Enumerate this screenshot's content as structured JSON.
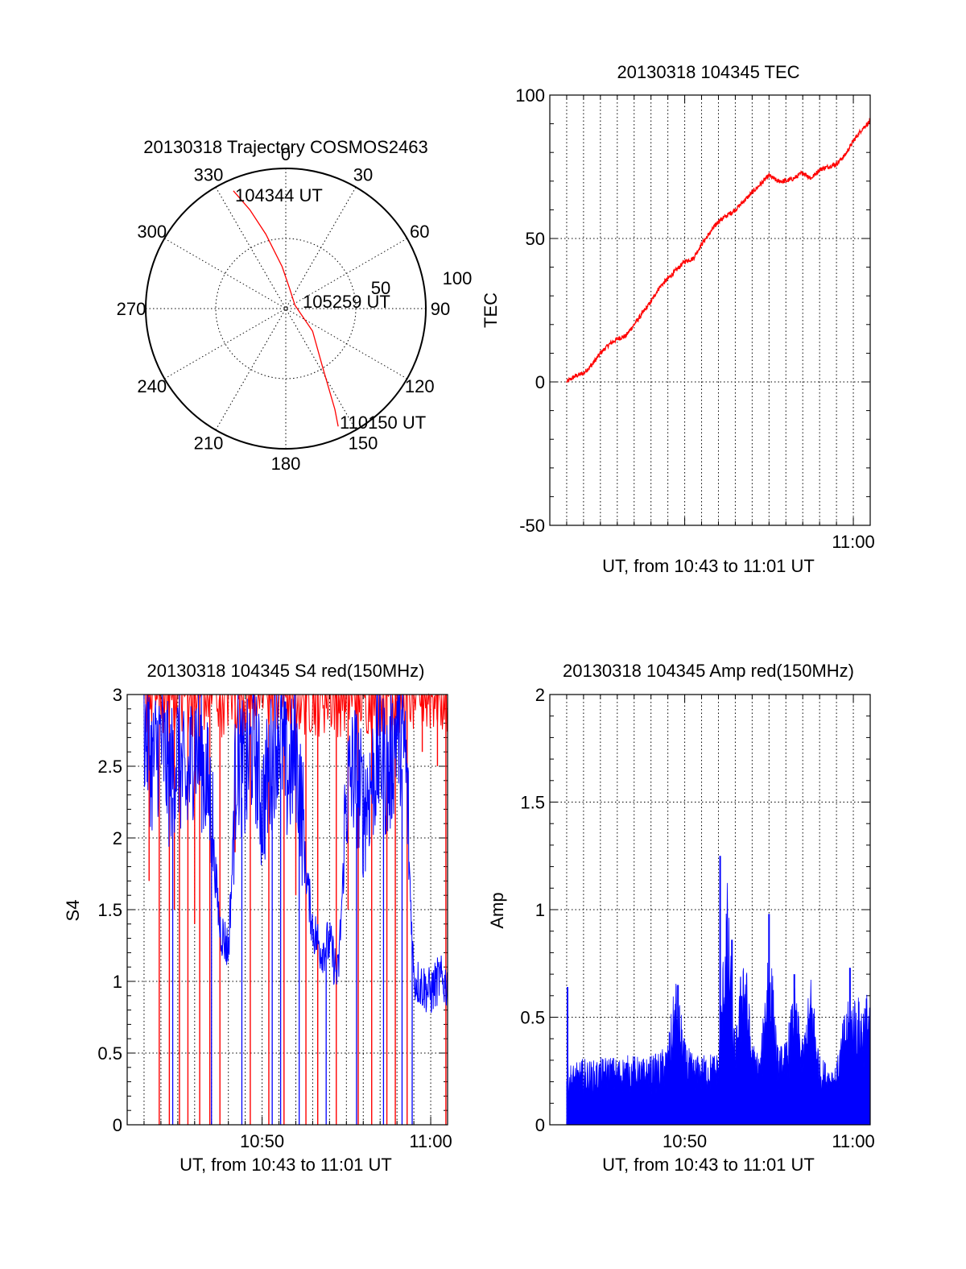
{
  "colors": {
    "red": "#ff0000",
    "blue": "#0000ff",
    "black": "#000000"
  },
  "chart_data": [
    {
      "id": "trajectory",
      "type": "polar",
      "title": "20130318 Trajectory COSMOS2463",
      "angle_labels": [
        "0",
        "30",
        "60",
        "90",
        "120",
        "150",
        "180",
        "210",
        "240",
        "270",
        "300",
        "330"
      ],
      "radius_labels": [
        "50",
        "100"
      ],
      "radius_range": [
        0,
        100
      ],
      "track": [
        {
          "az": 336,
          "r": 92
        },
        {
          "az": 340,
          "r": 75
        },
        {
          "az": 345,
          "r": 55
        },
        {
          "az": 355,
          "r": 30
        },
        {
          "az": 10,
          "r": 15
        },
        {
          "az": 70,
          "r": 7
        },
        {
          "az": 130,
          "r": 25
        },
        {
          "az": 148,
          "r": 50
        },
        {
          "az": 154,
          "r": 80
        },
        {
          "az": 156,
          "r": 92
        }
      ],
      "annotations": [
        "104344 UT",
        "105259 UT",
        "110150 UT"
      ]
    },
    {
      "id": "tec",
      "type": "line",
      "title": "20130318 104345 TEC",
      "xlabel": "UT, from 10:43 to 11:01 UT",
      "ylabel": "TEC",
      "xlim": [
        42.0,
        61.0
      ],
      "ylim": [
        -50,
        100
      ],
      "yticks": [
        "-50",
        "0",
        "50",
        "100"
      ],
      "xtick_labels": [
        {
          "x": 60,
          "label": "11:00"
        }
      ],
      "series": [
        {
          "name": "TEC",
          "color": "#ff0000",
          "x": [
            43.0,
            43.5,
            44.0,
            44.5,
            45.0,
            45.5,
            46.0,
            46.5,
            47.0,
            47.5,
            48.0,
            48.5,
            49.0,
            49.5,
            50.0,
            50.5,
            51.0,
            51.5,
            52.0,
            52.5,
            53.0,
            53.5,
            54.0,
            54.5,
            55.0,
            55.5,
            56.0,
            56.5,
            57.0,
            57.5,
            58.0,
            58.5,
            59.0,
            59.5,
            60.0,
            60.5,
            61.0
          ],
          "y": [
            0,
            2,
            3,
            6,
            10,
            13,
            15,
            16,
            20,
            24,
            28,
            33,
            36,
            39,
            42,
            43,
            48,
            52,
            56,
            58,
            60,
            63,
            66,
            69,
            72,
            70,
            70,
            71,
            73,
            71,
            74,
            75,
            76,
            79,
            84,
            88,
            91
          ]
        }
      ]
    },
    {
      "id": "s4",
      "type": "line",
      "title": "20130318 104345 S4 red(150MHz)",
      "xlabel": "UT, from 10:43 to 11:01 UT",
      "ylabel": "S4",
      "xlim": [
        42.0,
        61.0
      ],
      "ylim": [
        0,
        3
      ],
      "yticks": [
        "0",
        "0.5",
        "1",
        "1.5",
        "2",
        "2.5",
        "3"
      ],
      "xtick_labels": [
        {
          "x": 50,
          "label": "10:50"
        },
        {
          "x": 60,
          "label": "11:00"
        }
      ],
      "series": [
        {
          "name": "red (150MHz)",
          "color": "#ff0000",
          "drops_to_zero_x": [
            43.9,
            44.5,
            45.1,
            45.6,
            46.3,
            46.9,
            47.5,
            49.3,
            50.4,
            51.3,
            52.6,
            53.3,
            54.4,
            55.7,
            56.5,
            57.4,
            57.9,
            58.6,
            60.9
          ],
          "midrange_dips": [
            {
              "x": 43.3,
              "y": 1.7
            },
            {
              "x": 44.8,
              "y": 1.5
            },
            {
              "x": 46.0,
              "y": 1.4
            },
            {
              "x": 48.4,
              "y": 1.9
            },
            {
              "x": 52.0,
              "y": 1.6
            },
            {
              "x": 55.1,
              "y": 1.5
            },
            {
              "x": 59.5,
              "y": 2.6
            },
            {
              "x": 60.4,
              "y": 2.5
            }
          ]
        },
        {
          "name": "blue",
          "color": "#0000ff",
          "x": [
            43.0,
            43.5,
            44.0,
            44.5,
            45.0,
            45.5,
            46.0,
            46.5,
            47.0,
            47.5,
            48.0,
            48.5,
            49.0,
            49.5,
            50.0,
            50.5,
            51.0,
            51.5,
            52.0,
            52.5,
            53.0,
            53.5,
            54.0,
            54.5,
            55.0,
            55.5,
            56.0,
            56.5,
            57.0,
            57.5,
            58.0,
            58.5,
            59.0,
            59.5,
            60.0,
            60.5,
            61.0
          ],
          "y": [
            2.6,
            2.3,
            2.5,
            2.2,
            2.4,
            2.1,
            2.5,
            2.3,
            2.0,
            1.3,
            1.15,
            2.4,
            2.2,
            2.5,
            2.0,
            2.3,
            2.6,
            2.2,
            2.4,
            1.8,
            1.3,
            1.15,
            1.2,
            0.95,
            2.1,
            2.3,
            2.0,
            2.2,
            2.4,
            2.2,
            2.6,
            2.4,
            0.95,
            0.9,
            0.85,
            0.95,
            0.9
          ],
          "drops_to_zero_x": [
            44.7,
            47.0,
            48.8,
            50.6,
            51.1,
            52.2,
            53.8,
            55.6,
            57.2,
            58.3,
            58.9
          ]
        }
      ]
    },
    {
      "id": "amp",
      "type": "area",
      "title": "20130318 104345 Amp red(150MHz)",
      "xlabel": "UT, from 10:43 to 11:01 UT",
      "ylabel": "Amp",
      "xlim": [
        42.0,
        61.0
      ],
      "ylim": [
        0,
        2
      ],
      "yticks": [
        "0",
        "0.5",
        "1",
        "1.5",
        "2"
      ],
      "xtick_labels": [
        {
          "x": 50,
          "label": "10:50"
        },
        {
          "x": 60,
          "label": "11:00"
        }
      ],
      "series": [
        {
          "name": "Amp",
          "color": "#0000ff",
          "x": [
            43.0,
            43.5,
            44.0,
            44.5,
            45.0,
            45.5,
            46.0,
            46.5,
            47.0,
            47.5,
            48.0,
            48.5,
            49.0,
            49.5,
            50.0,
            50.5,
            51.0,
            51.5,
            52.0,
            52.5,
            53.0,
            53.5,
            54.0,
            54.5,
            55.0,
            55.5,
            56.0,
            56.5,
            57.0,
            57.5,
            58.0,
            58.5,
            59.0,
            59.5,
            60.0,
            60.5,
            61.0
          ],
          "y": [
            0.22,
            0.22,
            0.24,
            0.23,
            0.24,
            0.25,
            0.24,
            0.25,
            0.25,
            0.24,
            0.25,
            0.26,
            0.3,
            0.55,
            0.3,
            0.25,
            0.25,
            0.26,
            0.26,
            0.9,
            0.3,
            0.7,
            0.3,
            0.25,
            0.75,
            0.28,
            0.3,
            0.5,
            0.3,
            0.55,
            0.25,
            0.22,
            0.22,
            0.42,
            0.48,
            0.45,
            0.5
          ],
          "peaks": [
            {
              "x": 43.05,
              "y": 0.64
            },
            {
              "x": 49.6,
              "y": 0.65
            },
            {
              "x": 52.1,
              "y": 1.25
            },
            {
              "x": 52.8,
              "y": 0.86
            },
            {
              "x": 55.0,
              "y": 0.98
            },
            {
              "x": 56.5,
              "y": 0.7
            },
            {
              "x": 59.8,
              "y": 0.73
            }
          ]
        }
      ]
    }
  ]
}
